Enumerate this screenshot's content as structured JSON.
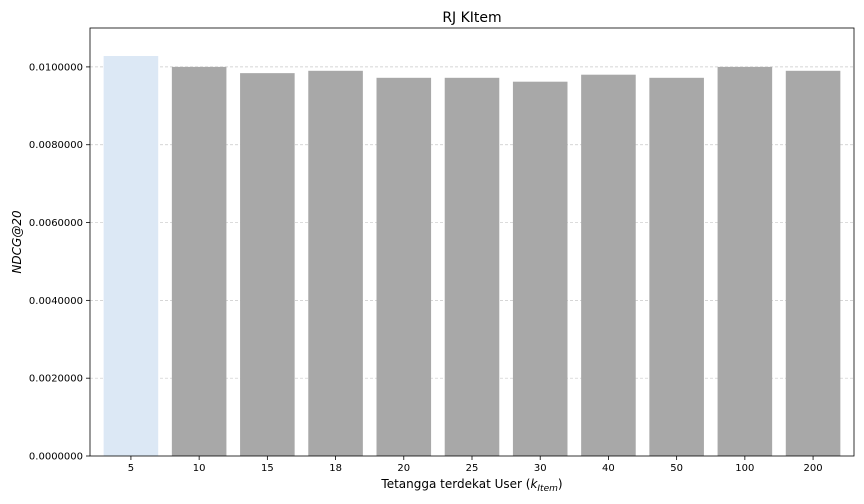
{
  "chart_data": {
    "type": "bar",
    "title": "RJ KItem",
    "xlabel": {
      "prefix": "Tetangga terdekat User (",
      "k": "k",
      "subscript": "Item",
      "suffix": ")"
    },
    "ylabel": "NDCG@20",
    "categories": [
      "5",
      "10",
      "15",
      "18",
      "20",
      "25",
      "30",
      "40",
      "50",
      "100",
      "200"
    ],
    "values": [
      0.01028,
      0.01,
      0.00984,
      0.0099,
      0.00972,
      0.00972,
      0.00962,
      0.0098,
      0.00972,
      0.01,
      0.0099
    ],
    "highlight_index": 0,
    "ylim": [
      0,
      0.011
    ],
    "yticks": [
      "0.0000000",
      "0.0020000",
      "0.0040000",
      "0.0060000",
      "0.0080000",
      "0.0100000"
    ],
    "ytick_values": [
      0,
      0.002,
      0.004,
      0.006,
      0.008,
      0.01
    ],
    "grid": "y-dashed",
    "colors": {
      "bar": "#a8a8a8",
      "highlight": "#dce8f5",
      "grid": "#c8c8c8",
      "axis": "#000000"
    }
  }
}
